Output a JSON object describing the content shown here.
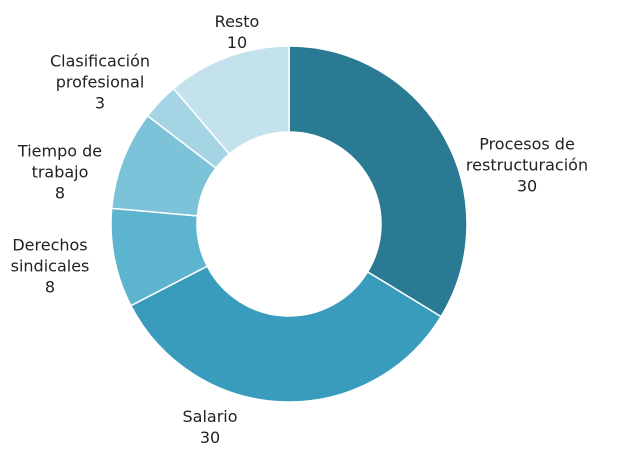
{
  "chart_data": {
    "type": "donut",
    "categories": [
      "Procesos de\nrestructuración",
      "Salario",
      "Derechos\nsindicales",
      "Tiempo de\ntrabajo",
      "Clasificación\nprofesional",
      "Resto"
    ],
    "values": [
      30,
      30,
      8,
      8,
      3,
      10
    ],
    "colors": [
      "#2b7a94",
      "#3a9cbd",
      "#5db4cf",
      "#7cc2d8",
      "#a5d5e5",
      "#c3e2ec"
    ]
  }
}
